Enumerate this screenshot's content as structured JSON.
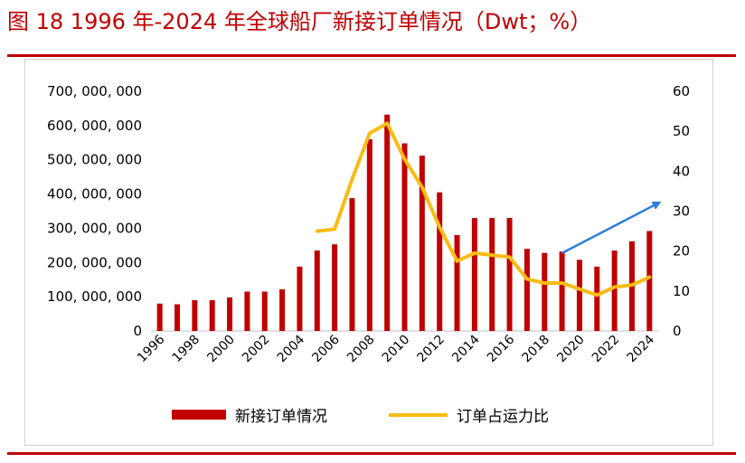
{
  "figure": {
    "title": "图 18 1996 年-2024 年全球船厂新接订单情况（Dwt；%）"
  },
  "colors": {
    "bar": "#c00000",
    "line": "#f8bc14",
    "arrow": "#2f7fe0",
    "rule": "#c00000"
  },
  "legend": {
    "bar_label": "新接订单情况",
    "line_label": "订单占运力比"
  },
  "chart_data": {
    "type": "bar",
    "title": "图 18 1996 年-2024 年全球船厂新接订单情况（Dwt；%）",
    "xlabel": "",
    "ylabel": "",
    "legend_position": "bottom",
    "grid": false,
    "categories": [
      "1996",
      "1997",
      "1998",
      "1999",
      "2000",
      "2001",
      "2002",
      "2003",
      "2004",
      "2005",
      "2006",
      "2007",
      "2008",
      "2009",
      "2010",
      "2011",
      "2012",
      "2013",
      "2014",
      "2015",
      "2016",
      "2017",
      "2018",
      "2019",
      "2020",
      "2021",
      "2022",
      "2023",
      "2024"
    ],
    "x_tick_labels": [
      "1996",
      "1998",
      "2000",
      "2002",
      "2004",
      "2006",
      "2008",
      "2010",
      "2012",
      "2014",
      "2016",
      "2018",
      "2020",
      "2022",
      "2024"
    ],
    "y_left_ticks": [
      "0",
      "100, 000, 000",
      "200, 000, 000",
      "300, 000, 000",
      "400, 000, 000",
      "500, 000, 000",
      "600, 000, 000",
      "700, 000, 000"
    ],
    "y_right_ticks": [
      "0",
      "10",
      "20",
      "30",
      "40",
      "50",
      "60"
    ],
    "ylim_left": [
      0,
      700000000
    ],
    "ylim_right": [
      0,
      60
    ],
    "series": [
      {
        "name": "新接订单情况",
        "type": "bar",
        "axis": "left",
        "values": [
          80000000,
          78000000,
          90000000,
          90000000,
          98000000,
          115000000,
          115000000,
          122000000,
          188000000,
          235000000,
          253000000,
          388000000,
          560000000,
          632000000,
          548000000,
          512000000,
          405000000,
          280000000,
          330000000,
          330000000,
          330000000,
          240000000,
          228000000,
          232000000,
          208000000,
          188000000,
          235000000,
          262000000,
          292000000
        ]
      },
      {
        "name": "订单占运力比",
        "type": "line",
        "axis": "right",
        "values": [
          null,
          null,
          null,
          null,
          null,
          null,
          null,
          null,
          null,
          25,
          25.5,
          38,
          49.5,
          52,
          43,
          36,
          26,
          17.5,
          19.5,
          19,
          18.5,
          13,
          12,
          12,
          10.5,
          9,
          11,
          11.5,
          13.5
        ]
      }
    ],
    "annotation": "blue arrow pointing up-right from 2019 to 2025"
  }
}
